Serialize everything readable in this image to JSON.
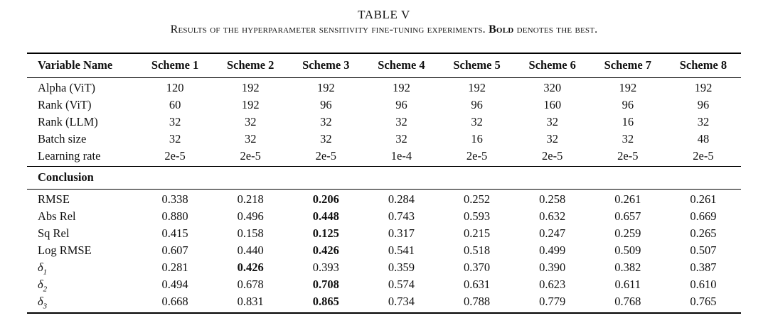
{
  "title": "TABLE V",
  "caption": {
    "prefix": "Results of the hyperparameter sensitivity fine-tuning experiments. ",
    "bold_word": "Bold",
    "suffix": " denotes the best."
  },
  "table": {
    "headers": [
      "Variable Name",
      "Scheme 1",
      "Scheme 2",
      "Scheme 3",
      "Scheme 4",
      "Scheme 5",
      "Scheme 6",
      "Scheme 7",
      "Scheme 8"
    ],
    "hyperparameter_rows": [
      {
        "label": "Alpha (ViT)",
        "values": [
          "120",
          "192",
          "192",
          "192",
          "192",
          "320",
          "192",
          "192"
        ]
      },
      {
        "label": "Rank (ViT)",
        "values": [
          "60",
          "192",
          "96",
          "96",
          "96",
          "160",
          "96",
          "96"
        ]
      },
      {
        "label": "Rank (LLM)",
        "values": [
          "32",
          "32",
          "32",
          "32",
          "32",
          "32",
          "16",
          "32"
        ]
      },
      {
        "label": "Batch size",
        "values": [
          "32",
          "32",
          "32",
          "32",
          "16",
          "32",
          "32",
          "48"
        ]
      },
      {
        "label": "Learning rate",
        "values": [
          "2e-5",
          "2e-5",
          "2e-5",
          "1e-4",
          "2e-5",
          "2e-5",
          "2e-5",
          "2e-5"
        ]
      }
    ],
    "section_label": "Conclusion",
    "metric_rows": [
      {
        "label": "RMSE",
        "values": [
          "0.338",
          "0.218",
          "0.206",
          "0.284",
          "0.252",
          "0.258",
          "0.261",
          "0.261"
        ],
        "bold_index": 2
      },
      {
        "label": "Abs Rel",
        "values": [
          "0.880",
          "0.496",
          "0.448",
          "0.743",
          "0.593",
          "0.632",
          "0.657",
          "0.669"
        ],
        "bold_index": 2
      },
      {
        "label": "Sq Rel",
        "values": [
          "0.415",
          "0.158",
          "0.125",
          "0.317",
          "0.215",
          "0.247",
          "0.259",
          "0.265"
        ],
        "bold_index": 2
      },
      {
        "label": "Log RMSE",
        "values": [
          "0.607",
          "0.440",
          "0.426",
          "0.541",
          "0.518",
          "0.499",
          "0.509",
          "0.507"
        ],
        "bold_index": 2
      },
      {
        "label": "δ",
        "sub": "1",
        "italic": true,
        "values": [
          "0.281",
          "0.426",
          "0.393",
          "0.359",
          "0.370",
          "0.390",
          "0.382",
          "0.387"
        ],
        "bold_index": 1
      },
      {
        "label": "δ",
        "sub": "2",
        "italic": true,
        "values": [
          "0.494",
          "0.678",
          "0.708",
          "0.574",
          "0.631",
          "0.623",
          "0.611",
          "0.610"
        ],
        "bold_index": 2
      },
      {
        "label": "δ",
        "sub": "3",
        "italic": true,
        "values": [
          "0.668",
          "0.831",
          "0.865",
          "0.734",
          "0.788",
          "0.779",
          "0.768",
          "0.765"
        ],
        "bold_index": 2
      }
    ]
  }
}
